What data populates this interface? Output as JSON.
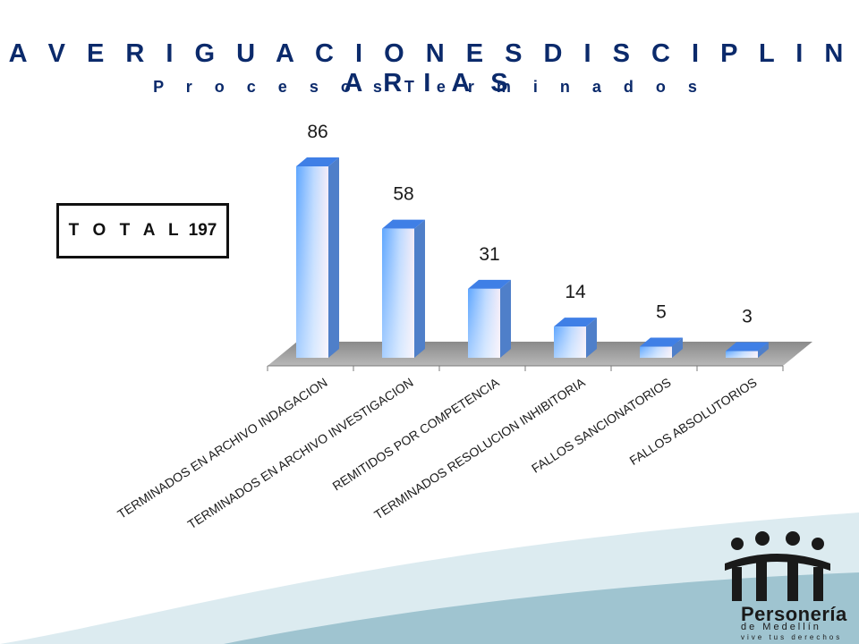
{
  "slide": {
    "total_label": "T O T A L",
    "total_value": "197"
  },
  "logo": {
    "name": "Personería",
    "city": "de Medellín",
    "tagline": "vive tus derechos",
    "icon": "people-group-icon"
  },
  "colors": {
    "title": "#0b2a6b",
    "bar_light": "#ffffff",
    "bar_mid": "#9ec8ff",
    "bar_dark": "#3d86f0",
    "floor": "#9a9a9a",
    "wave_dark": "#9fc4d0",
    "wave_light": "#dcebf0"
  },
  "chart_data": {
    "type": "bar",
    "title": "A V E R I G U A C I O N E S   D I S C I P L I N A R I A S",
    "subtitle": "P r o c e s o s   T e r m i n a d o s",
    "categories": [
      "TERMINADOS EN ARCHIVO INDAGACION",
      "TERMINADOS EN ARCHIVO INVESTIGACION",
      "REMITIDOS POR COMPETENCIA",
      "TERMINADOS RESOLUCION INHIBITORIA",
      "FALLOS SANCIONATORIOS",
      "FALLOS ABSOLUTORIOS"
    ],
    "values": [
      86,
      58,
      31,
      14,
      5,
      3
    ],
    "data_labels": [
      "86",
      "58",
      "31",
      "14",
      "5",
      "3"
    ],
    "ylim": [
      0,
      86
    ],
    "grid": false,
    "legend": "none",
    "style": "3d-column"
  }
}
